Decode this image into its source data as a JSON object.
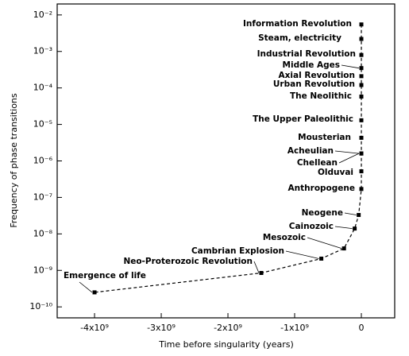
{
  "chart_data": {
    "type": "scatter",
    "x_label": "Time before singularity (years)",
    "y_label": "Frequency of phase transitions",
    "labels": [
      "Information Revolution",
      "Steam, electricity",
      "Industrial Revolution",
      "Middle Ages",
      "Axial Revolution",
      "Urban Revolution",
      "The Neolithic",
      "The Upper Paleolithic",
      "Mousterian",
      "Acheulian",
      "Chellean",
      "Olduvai",
      "Anthropogene",
      "Neogene",
      "Cainozoic",
      "Mesozoic",
      "Cambrian Explosion",
      "Neo-Proterozoic Revolution",
      "Emergence of life"
    ],
    "x": [
      0,
      0,
      0,
      0,
      0,
      0,
      0,
      0,
      0,
      0,
      0,
      0,
      0,
      -40000000,
      -100000000,
      -260000000,
      -600000000,
      -1500000000,
      -4000000000
    ],
    "values": [
      0.0055,
      0.0022,
      0.0008,
      0.00035,
      0.00021,
      0.00012,
      5.8e-05,
      1.3e-05,
      4.3e-06,
      1.6e-06,
      1.6e-06,
      5.2e-07,
      1.7e-07,
      3.3e-08,
      1.4e-08,
      4e-09,
      2.1e-09,
      8.5e-10,
      2.5e-10
    ],
    "color": "#000000",
    "log_y": true,
    "xlim": [
      -4560000000,
      500000000
    ],
    "ylim": [
      5e-11,
      0.02
    ],
    "xticks": [
      {
        "value": -4000000000,
        "label": "-4x10⁹"
      },
      {
        "value": -3000000000,
        "label": "-3x10⁹"
      },
      {
        "value": -2000000000,
        "label": "-2x10⁹"
      },
      {
        "value": -1000000000,
        "label": "-1x10⁹"
      },
      0
    ],
    "yticks": [
      {
        "value": 0.01,
        "label": "10⁻²"
      },
      {
        "value": 0.001,
        "label": "10⁻³"
      },
      {
        "value": 0.0001,
        "label": "10⁻⁴"
      },
      {
        "value": 1e-05,
        "label": "10⁻⁵"
      },
      {
        "value": 1e-06,
        "label": "10⁻⁶"
      },
      {
        "value": 1e-07,
        "label": "10⁻⁷"
      },
      {
        "value": 1e-08,
        "label": "10⁻⁸"
      },
      {
        "value": 1e-09,
        "label": "10⁻⁹"
      },
      {
        "value": 1e-10,
        "label": "10⁻¹⁰"
      }
    ]
  }
}
